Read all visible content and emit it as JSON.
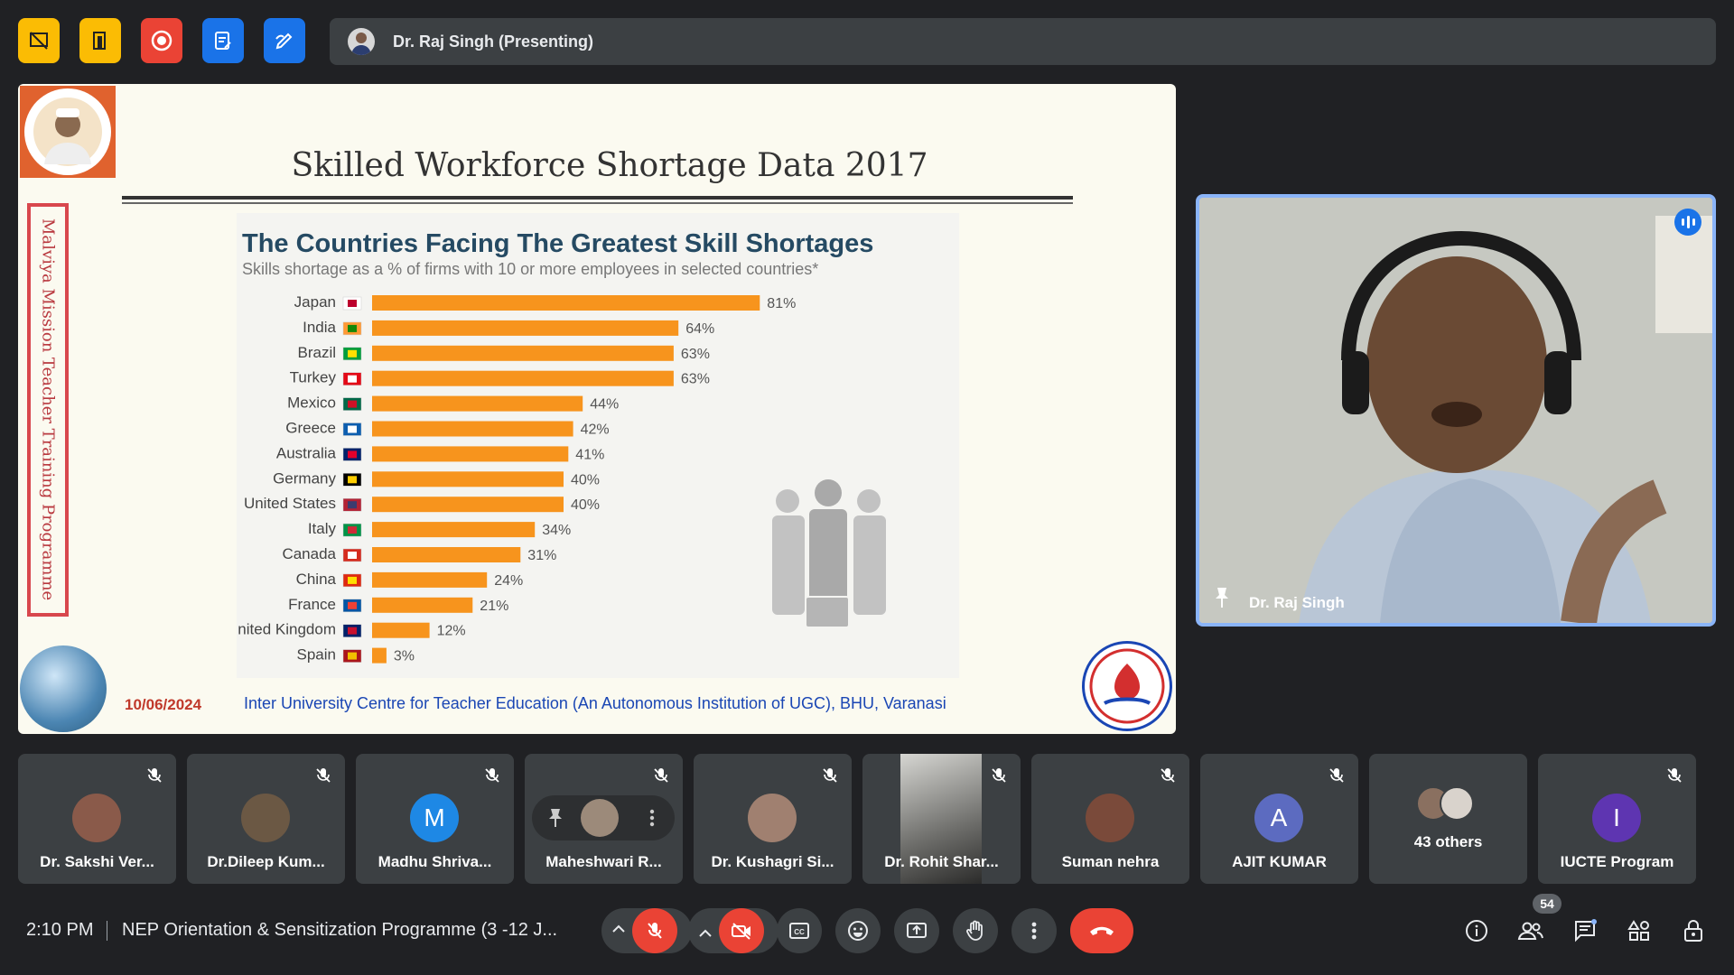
{
  "presenter_bar": {
    "label": "Dr. Raj Singh (Presenting)"
  },
  "slide": {
    "title": "Skilled Workforce Shortage Data 2017",
    "vertical_text": "Malviya Mission Teacher Training Programme",
    "date": "10/06/2024",
    "footer": "Inter University Centre for Teacher Education (An Autonomous Institution of UGC), BHU, Varanasi"
  },
  "chart_data": {
    "type": "bar",
    "title": "The Countries Facing The Greatest Skill Shortages",
    "subtitle": "Skills shortage as a % of firms with 10 or more employees in selected countries*",
    "categories": [
      "Japan",
      "India",
      "Brazil",
      "Turkey",
      "Mexico",
      "Greece",
      "Australia",
      "Germany",
      "United States",
      "Italy",
      "Canada",
      "China",
      "France",
      "United Kingdom",
      "Spain"
    ],
    "values": [
      81,
      64,
      63,
      63,
      44,
      42,
      41,
      40,
      40,
      34,
      31,
      24,
      21,
      12,
      3
    ],
    "labels": [
      "81%",
      "64%",
      "63%",
      "63%",
      "44%",
      "42%",
      "41%",
      "40%",
      "40%",
      "34%",
      "31%",
      "24%",
      "21%",
      "12%",
      "3%"
    ],
    "orientation": "horizontal",
    "bar_color": "#f7941d",
    "xlim": [
      0,
      100
    ]
  },
  "video": {
    "name": "Dr. Raj Singh"
  },
  "participants": [
    {
      "name": "Dr. Sakshi Ver...",
      "avatar": "photo",
      "color": "#8a5a4a"
    },
    {
      "name": "Dr.Dileep Kum...",
      "avatar": "photo",
      "color": "#6b5844"
    },
    {
      "name": "Madhu Shriva...",
      "avatar": "M",
      "color": "#1e88e5"
    },
    {
      "name": "Maheshwari R...",
      "avatar": "photo",
      "color": "#9c8a7a"
    },
    {
      "name": "Dr. Kushagri Si...",
      "avatar": "photo",
      "color": "#a08070"
    },
    {
      "name": "Dr. Rohit Shar...",
      "avatar": "video",
      "color": "#555"
    },
    {
      "name": "Suman nehra",
      "avatar": "photo",
      "color": "#7a4a3a"
    },
    {
      "name": "AJIT KUMAR",
      "avatar": "A",
      "color": "#5c6bc0"
    },
    {
      "name": "43 others",
      "avatar": "group",
      "color": "#777"
    },
    {
      "name": "IUCTE Program",
      "avatar": "I",
      "color": "#5e35b1"
    }
  ],
  "bottom": {
    "time": "2:10 PM",
    "meeting": "NEP Orientation & Sensitization Programme (3 -12 J...",
    "people_count": "54"
  }
}
